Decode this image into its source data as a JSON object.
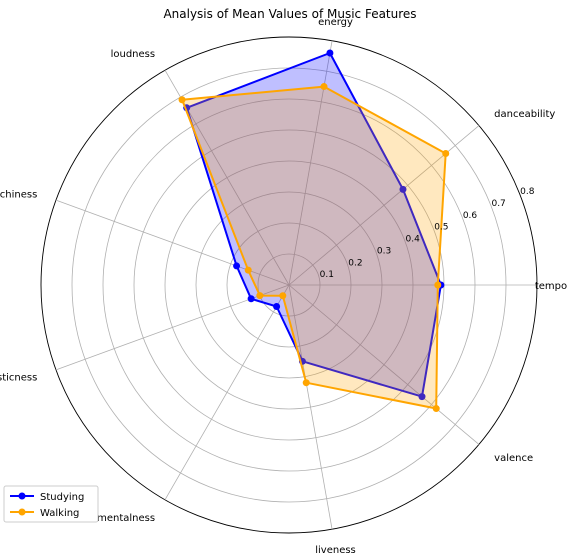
{
  "chart_data": {
    "type": "radar",
    "title": "Analysis of Mean Values of Music Features",
    "categories": [
      "tempo",
      "danceability",
      "energy",
      "loudness",
      "speechiness",
      "acousticness",
      "instrumentalness",
      "liveness",
      "valence"
    ],
    "radial_ticks": [
      "0.1",
      "0.2",
      "0.3",
      "0.4",
      "0.5",
      "0.6",
      "0.7",
      "0.8"
    ],
    "rlim": [
      0,
      0.8
    ],
    "grid": true,
    "legend_position": "bottom-left",
    "series": [
      {
        "name": "Studying",
        "color": "#0000ff",
        "values": [
          0.49,
          0.48,
          0.76,
          0.66,
          0.18,
          0.13,
          0.08,
          0.25,
          0.56
        ]
      },
      {
        "name": "Walking",
        "color": "#ffa500",
        "values": [
          0.48,
          0.66,
          0.65,
          0.69,
          0.14,
          0.1,
          0.04,
          0.32,
          0.62
        ]
      }
    ]
  }
}
